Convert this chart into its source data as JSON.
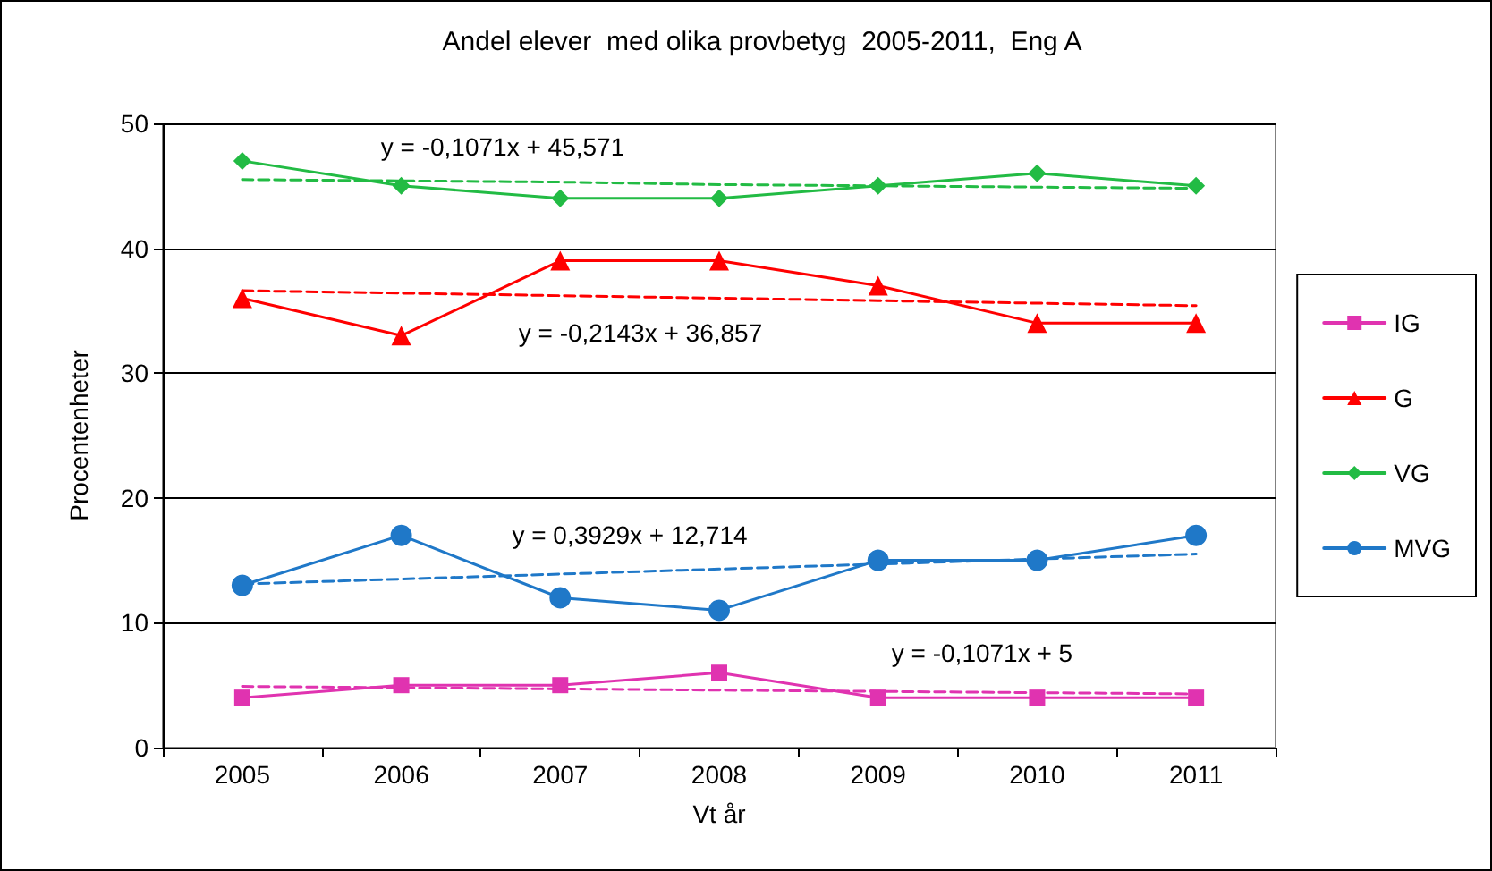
{
  "chart_data": {
    "type": "line",
    "title": "Andel elever  med olika provbetyg  2005-2011,  Eng A",
    "xlabel": "Vt år",
    "ylabel": "Procentenheter",
    "categories": [
      "2005",
      "2006",
      "2007",
      "2008",
      "2009",
      "2010",
      "2011"
    ],
    "series": [
      {
        "name": "IG",
        "color": "#e033b0",
        "marker": "square",
        "values": [
          4,
          5,
          5,
          6,
          4,
          4,
          4
        ]
      },
      {
        "name": "G",
        "color": "#ff0000",
        "marker": "triangle",
        "values": [
          36,
          33,
          39,
          39,
          37,
          34,
          34
        ]
      },
      {
        "name": "VG",
        "color": "#22bb44",
        "marker": "diamond",
        "values": [
          47,
          45,
          44,
          44,
          45,
          46,
          45
        ]
      },
      {
        "name": "MVG",
        "color": "#1f78c8",
        "marker": "circle",
        "values": [
          13,
          17,
          12,
          11,
          15,
          15,
          17
        ]
      },
      {
        "type": "line",
        "color": "#e033b0",
        "marker": "none",
        "line_style": "dashed",
        "values": [
          4.9,
          4.8,
          4.7,
          4.6,
          4.5,
          4.4,
          4.3
        ]
      },
      {
        "type": "line",
        "color": "#ff0000",
        "marker": "none",
        "line_style": "dashed",
        "values": [
          36.6,
          36.4,
          36.2,
          36.0,
          35.8,
          35.6,
          35.4
        ]
      },
      {
        "type": "line",
        "color": "#22bb44",
        "marker": "none",
        "line_style": "dashed",
        "values": [
          45.5,
          45.4,
          45.3,
          45.1,
          45.0,
          44.9,
          44.8
        ]
      },
      {
        "type": "line",
        "color": "#1f78c8",
        "marker": "none",
        "line_style": "dashed",
        "values": [
          13.1,
          13.5,
          13.9,
          14.3,
          14.7,
          15.1,
          15.5
        ]
      }
    ],
    "annotations": [
      "y = -0,1071x + 45,571",
      "y = -0,2143x + 36,857",
      "y = 0,3929x + 12,714",
      "y = -0,1071x + 5"
    ],
    "ylim": [
      0,
      50
    ],
    "yticks": [
      0,
      10,
      20,
      30,
      40,
      50
    ],
    "grid": "y",
    "legend": "right",
    "line_style": "solid"
  }
}
